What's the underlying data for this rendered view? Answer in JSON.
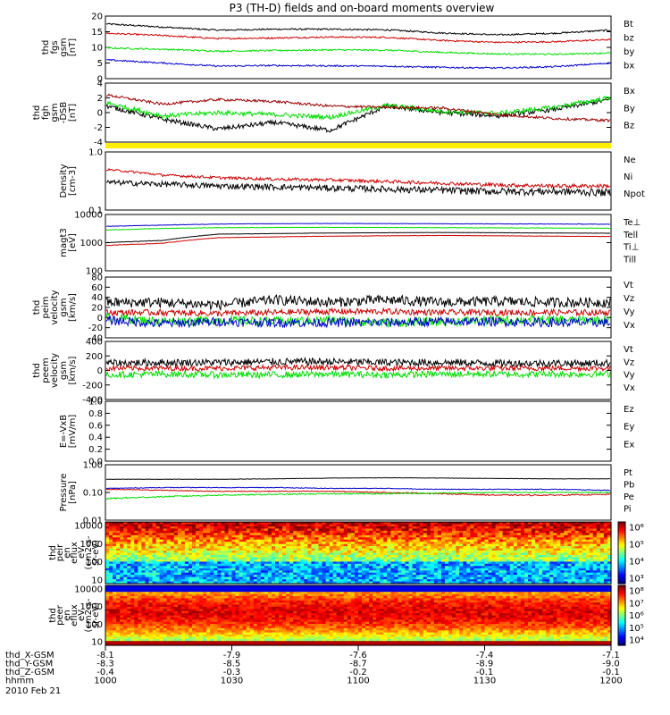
{
  "chart_data": {
    "type": "line",
    "title": "P3 (TH-D) fields and on-board moments overview",
    "x_time_ticks": [
      "1000",
      "1030",
      "1100",
      "1130",
      "1200"
    ],
    "date": "2010 Feb 21",
    "ephemeris": [
      {
        "label": "thd_X-GSM",
        "values": [
          "-8.1",
          "-7.9",
          "-7.6",
          "-7.4",
          "-7.1"
        ]
      },
      {
        "label": "thd_Y-GSM",
        "values": [
          "-8.3",
          "-8.5",
          "-8.7",
          "-8.9",
          "-9.0"
        ]
      },
      {
        "label": "thd_Z-GSM",
        "values": [
          "-0.4",
          "-0.3",
          "-0.2",
          "-0.1",
          "-0.1"
        ]
      },
      {
        "label": "hhmm",
        "values": [
          "1000",
          "1030",
          "1100",
          "1130",
          "1200"
        ]
      }
    ],
    "panels": [
      {
        "id": "fgs",
        "ylabel": [
          "thd",
          "fgs",
          "gsm",
          "[nT]"
        ],
        "ylim": [
          0,
          20
        ],
        "scale": "linear",
        "ticks": [
          "20",
          "15",
          "10",
          "5",
          "0"
        ],
        "series": [
          {
            "name": "Bt",
            "color": "#000000",
            "level": [
              17.5,
              16.5,
              15.5,
              15.8,
              15.8,
              15.6,
              14.6,
              14.0,
              14.5,
              15.5
            ],
            "noise": 0.25
          },
          {
            "name": "bz",
            "color": "#cc0000",
            "level": [
              14.5,
              13.8,
              12.8,
              13.0,
              13.3,
              13.2,
              12.2,
              11.6,
              11.8,
              12.5
            ],
            "noise": 0.25
          },
          {
            "name": "by",
            "color": "#00dd00",
            "level": [
              9.8,
              9.4,
              8.8,
              9.0,
              9.2,
              9.1,
              8.4,
              7.9,
              7.8,
              8.2
            ],
            "noise": 0.25
          },
          {
            "name": "bx",
            "color": "#0000cc",
            "level": [
              6.0,
              5.0,
              4.0,
              4.2,
              4.1,
              4.0,
              3.6,
              3.4,
              3.8,
              5.0
            ],
            "noise": 0.25
          }
        ]
      },
      {
        "id": "fgh",
        "ylabel": [
          "thd",
          "fgh",
          "gsm",
          "-DSB",
          "[nT]"
        ],
        "ylim": [
          -5,
          4
        ],
        "scale": "linear",
        "ticks": [
          "4",
          "2",
          "0",
          "-2",
          "-4"
        ],
        "series": [
          {
            "name": "Bx",
            "color": "#000000",
            "level": [
              0.5,
              -1.5,
              -3.0,
              -2.0,
              -3.2,
              0.5,
              -0.5,
              -1.0,
              0.0,
              1.5
            ],
            "noise": 0.35
          },
          {
            "name": "By",
            "color": "#00dd00",
            "level": [
              1.0,
              -1.0,
              -0.5,
              -0.8,
              -1.2,
              0.6,
              -0.3,
              -0.6,
              0.3,
              1.8
            ],
            "noise": 0.35
          },
          {
            "name": "Bz",
            "color": "#990000",
            "level": [
              2.2,
              0.8,
              1.5,
              1.2,
              0.5,
              0.3,
              0.2,
              -0.8,
              -1.4,
              -1.7
            ],
            "noise": 0.2
          }
        ]
      },
      {
        "id": "density",
        "ylabel": [
          "Density",
          "[cm-3]"
        ],
        "ylim": [
          0.1,
          1.0
        ],
        "scale": "log",
        "ticks": [
          "1.0",
          "0.1"
        ],
        "series": [
          {
            "name": "Ne",
            "color": "#cc0000",
            "level": [
              0.5,
              0.4,
              0.36,
              0.34,
              0.33,
              0.31,
              0.29,
              0.27,
              0.26,
              0.26
            ],
            "noise": 0.02
          },
          {
            "name": "Ni",
            "color": "#000000",
            "level": [
              0.3,
              0.28,
              0.26,
              0.25,
              0.24,
              0.23,
              0.22,
              0.21,
              0.21,
              0.2
            ],
            "noise": 0.03
          },
          {
            "name": "Npot",
            "color": "#0000cc",
            "level": [],
            "noise": 0
          }
        ]
      },
      {
        "id": "temp",
        "ylabel": [
          "magt3",
          "[eV]"
        ],
        "ylim": [
          100,
          10000
        ],
        "scale": "log",
        "ticks": [
          "10000",
          "1000",
          "100"
        ],
        "series": [
          {
            "name": "Te⊥",
            "color": "#cc0000",
            "level": [
              800,
              950,
              1500,
              1600,
              1700,
              1750,
              1800,
              1750,
              1700,
              1650
            ],
            "noise": 20
          },
          {
            "name": "Tell",
            "color": "#000000",
            "level": [
              1000,
              1200,
              2000,
              2100,
              2200,
              2250,
              2300,
              2250,
              2200,
              2150
            ],
            "noise": 20
          },
          {
            "name": "Ti⊥",
            "color": "#0000cc",
            "level": [
              3800,
              4200,
              4600,
              4700,
              4800,
              4750,
              4700,
              4650,
              4600,
              4500
            ],
            "noise": 80
          },
          {
            "name": "Till",
            "color": "#00dd00",
            "level": [
              2800,
              3200,
              3400,
              3450,
              3500,
              3450,
              3400,
              3350,
              3300,
              3250
            ],
            "noise": 60
          }
        ]
      },
      {
        "id": "peim",
        "ylabel": [
          "thd",
          "peim",
          "velocity",
          "gsm",
          "[km/s]"
        ],
        "ylim": [
          -40,
          80
        ],
        "scale": "linear",
        "ticks": [
          "80",
          "60",
          "40",
          "20",
          "0",
          "-20",
          "-40"
        ],
        "series": [
          {
            "name": "Vt",
            "color": "#000000",
            "level": [
              30,
              30,
              25,
              35,
              30,
              35,
              30,
              32,
              30,
              30
            ],
            "noise": 10
          },
          {
            "name": "Vz",
            "color": "#cc0000",
            "level": [
              10,
              10,
              8,
              10,
              12,
              12,
              10,
              10,
              10,
              10
            ],
            "noise": 6
          },
          {
            "name": "Vy",
            "color": "#00dd00",
            "level": [
              0,
              -8,
              -5,
              -8,
              -5,
              -10,
              -8,
              -5,
              -5,
              -5
            ],
            "noise": 9
          },
          {
            "name": "Vx",
            "color": "#0000cc",
            "level": [
              -5,
              -12,
              -8,
              -10,
              -10,
              -10,
              -8,
              -8,
              -10,
              -10
            ],
            "noise": 9
          }
        ]
      },
      {
        "id": "peem",
        "ylabel": [
          "thd",
          "peem",
          "velocity",
          "gsm",
          "[km/s]"
        ],
        "ylim": [
          -400,
          400
        ],
        "scale": "linear",
        "ticks": [
          "400",
          "200",
          "0",
          "-200",
          "-400"
        ],
        "series": [
          {
            "name": "Vt",
            "color": "#000000",
            "level": [
              100,
              110,
              110,
              120,
              120,
              110,
              110,
              100,
              100,
              100
            ],
            "noise": 50
          },
          {
            "name": "Vz",
            "color": "#cc0000",
            "level": [
              30,
              30,
              30,
              40,
              40,
              30,
              30,
              30,
              30,
              30
            ],
            "noise": 35
          },
          {
            "name": "Vy",
            "color": "#00dd00",
            "level": [
              -60,
              -50,
              -60,
              -60,
              -50,
              -60,
              -50,
              -50,
              -50,
              -50
            ],
            "noise": 45
          },
          {
            "name": "Vx",
            "color": "#0000cc",
            "level": [],
            "noise": 0
          }
        ]
      },
      {
        "id": "exb",
        "ylabel": [
          "E=-VxB",
          "[mV/m]"
        ],
        "ylim": [
          0,
          1
        ],
        "scale": "linear",
        "ticks": [
          "1.0",
          "0.8",
          "0.6",
          "0.4",
          "0.2",
          "0.0"
        ],
        "series": [
          {
            "name": "Ez",
            "color": "#cc0000",
            "level": [],
            "noise": 0
          },
          {
            "name": "Ey",
            "color": "#00dd00",
            "level": [],
            "noise": 0
          },
          {
            "name": "Ex",
            "color": "#0000cc",
            "level": [],
            "noise": 0
          }
        ]
      },
      {
        "id": "pressure",
        "ylabel": [
          "Pressure",
          "[nPa]"
        ],
        "ylim": [
          0.01,
          1.0
        ],
        "scale": "log",
        "ticks": [
          "1.00",
          "0.10",
          "0.01"
        ],
        "series": [
          {
            "name": "Pt",
            "color": "#000000",
            "level": [
              0.3,
              0.3,
              0.3,
              0.31,
              0.33,
              0.34,
              0.33,
              0.32,
              0.31,
              0.31
            ],
            "noise": 0.005
          },
          {
            "name": "Pb",
            "color": "#cc0000",
            "level": [
              0.13,
              0.12,
              0.11,
              0.11,
              0.11,
              0.1,
              0.09,
              0.08,
              0.08,
              0.085
            ],
            "noise": 0.004
          },
          {
            "name": "Pe",
            "color": "#00dd00",
            "level": [
              0.06,
              0.07,
              0.08,
              0.085,
              0.09,
              0.09,
              0.095,
              0.1,
              0.1,
              0.1
            ],
            "noise": 0.004
          },
          {
            "name": "Pi",
            "color": "#0000cc",
            "level": [
              0.14,
              0.15,
              0.15,
              0.15,
              0.14,
              0.14,
              0.13,
              0.13,
              0.13,
              0.12
            ],
            "noise": 0.004
          }
        ]
      }
    ],
    "spectrograms": [
      {
        "id": "peir",
        "ylabel": [
          "thd",
          "peir",
          "en",
          "eflux",
          "eV",
          "(cm2-s-",
          "sr-eV)"
        ],
        "ylim": [
          10,
          10000
        ],
        "scale": "log",
        "ticks": [
          "10000",
          "1000",
          "100",
          "10"
        ],
        "colorbar_ticks": [
          "10⁶",
          "10⁵",
          "10⁴",
          "10³"
        ]
      },
      {
        "id": "peer",
        "ylabel": [
          "thd",
          "peer",
          "en",
          "eflux",
          "eV",
          "(cm2-s-",
          "sr-eV)"
        ],
        "ylim": [
          10,
          10000
        ],
        "scale": "log",
        "ticks": [
          "10000",
          "1000",
          "100",
          "10"
        ],
        "colorbar_ticks": [
          "10⁸",
          "10⁷",
          "10⁶",
          "10⁵",
          "10⁴"
        ]
      }
    ]
  }
}
